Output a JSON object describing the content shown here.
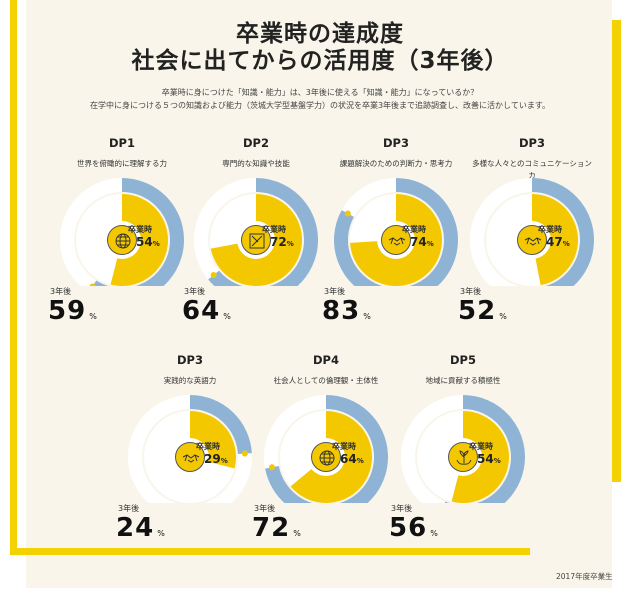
{
  "title_line1": "卒業時の達成度",
  "title_line2": "社会に出てからの活用度（3年後）",
  "lead_line1": "卒業時に身につけた「知識・能力」は、3年後に使える「知識・能力」になっているか？",
  "lead_line2": "在学中に身につける５つの知識および能力（茨城大学型基盤学力）の状況を卒業3年後まで追跡調査し、改善に活かしています。",
  "graduation_label": "卒業時",
  "three_years_label": "3年後",
  "percent_unit": "%",
  "footnote": "2017年度卒業生",
  "colors": {
    "yellow": "#f4c800",
    "blue": "#8fb3d4",
    "white_ring": "#ffffff",
    "panel": "#f9f5ea",
    "frame": "#f4d100"
  },
  "chart_data": {
    "type": "donut",
    "series": [
      {
        "name": "卒業時",
        "color": "#f4c800"
      },
      {
        "name": "3年後",
        "color": "#8fb3d4"
      }
    ],
    "items": [
      {
        "code": "DP1",
        "name": "世界を俯瞰的に理解する力",
        "graduation": 54,
        "after_3_years": 59,
        "icon": "globe-icon"
      },
      {
        "code": "DP2",
        "name": "専門的な知識や技能",
        "graduation": 72,
        "after_3_years": 64,
        "icon": "tools-icon"
      },
      {
        "code": "DP3",
        "name": "課題解決のための判断力・思考力",
        "graduation": 74,
        "after_3_years": 83,
        "icon": "handshake-icon"
      },
      {
        "code": "DP3",
        "name": "多様な人々とのコミュニケーションカ",
        "graduation": 47,
        "after_3_years": 52,
        "icon": "handshake-icon"
      },
      {
        "code": "DP3",
        "name": "実践的な英語力",
        "graduation": 29,
        "after_3_years": 24,
        "icon": "handshake-icon"
      },
      {
        "code": "DP4",
        "name": "社会人としての倫理観・主体性",
        "graduation": 64,
        "after_3_years": 72,
        "icon": "globe-hand-icon"
      },
      {
        "code": "DP5",
        "name": "地域に貢献する積極性",
        "graduation": 54,
        "after_3_years": 56,
        "icon": "plant-hands-icon"
      }
    ]
  }
}
